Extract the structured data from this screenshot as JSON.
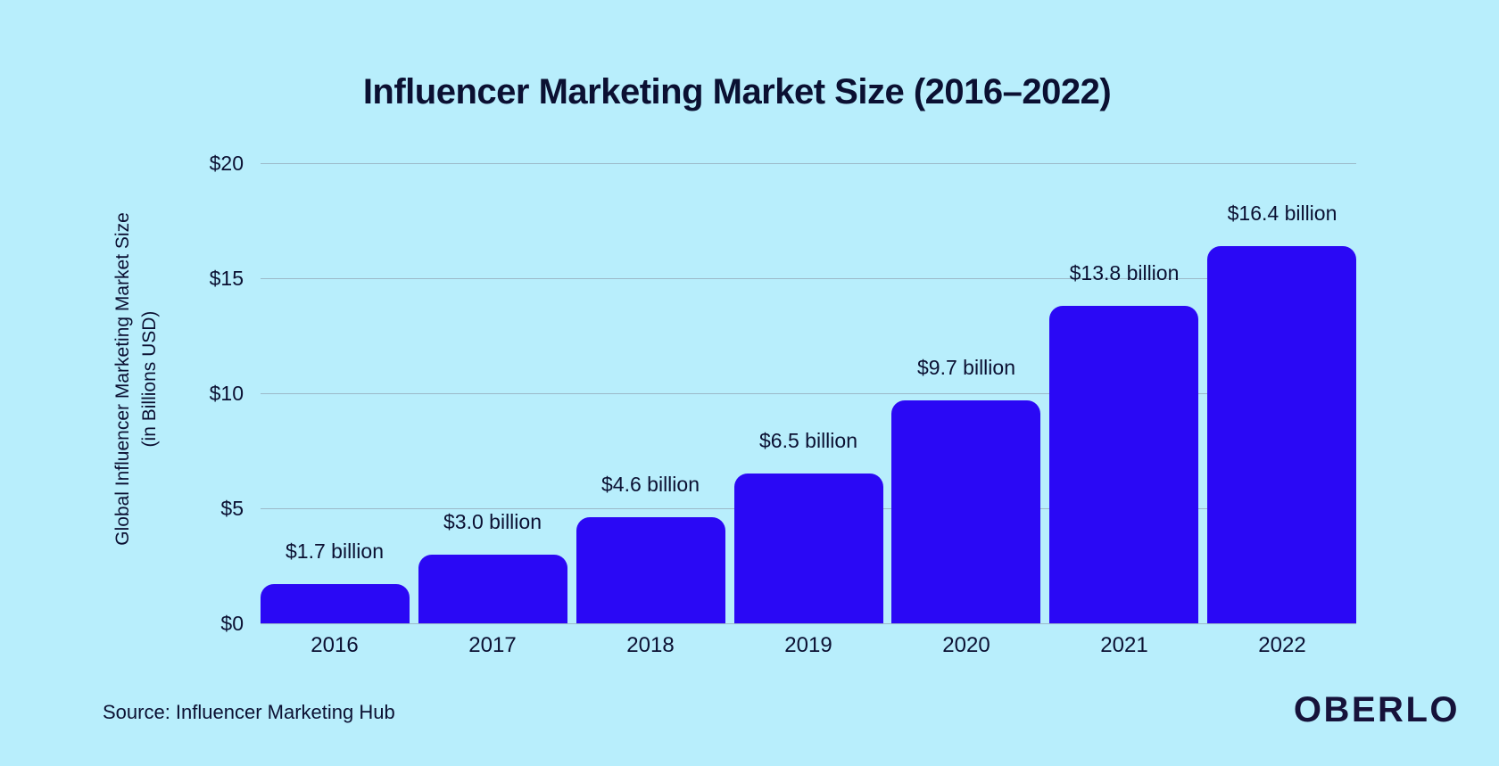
{
  "title": "Influencer Marketing Market Size (2016–2022)",
  "y_axis": {
    "label_line1": "Global Influencer Marketing Market Size",
    "label_line2": "(in Billions USD)"
  },
  "footer": {
    "source": "Source: Influencer Marketing Hub",
    "brand": "OBERLO"
  },
  "colors": {
    "background": "#B8EEFC",
    "bar": "#2A08F5",
    "title_text": "#0B1032",
    "text": "#141A3D",
    "gridline": "#9CB9C8",
    "logo": "#16123A"
  },
  "chart_data": {
    "type": "bar",
    "title": "Influencer Marketing Market Size (2016–2022)",
    "categories": [
      "2016",
      "2017",
      "2018",
      "2019",
      "2020",
      "2021",
      "2022"
    ],
    "values": [
      1.7,
      3.0,
      4.6,
      6.5,
      9.7,
      13.8,
      16.4
    ],
    "value_labels": [
      "$1.7 billion",
      "$3.0 billion",
      "$4.6 billion",
      "$6.5 billion",
      "$9.7 billion",
      "$13.8 billion",
      "$16.4 billion"
    ],
    "xlabel": "",
    "ylabel": "Global Influencer Marketing Market Size (in Billions USD)",
    "ylim": [
      0,
      20
    ],
    "yticks": [
      {
        "value": 20,
        "label": "$20"
      },
      {
        "value": 15,
        "label": "$15"
      },
      {
        "value": 10,
        "label": "$10"
      },
      {
        "value": 5,
        "label": "$5"
      },
      {
        "value": 0,
        "label": "$0"
      }
    ],
    "grid": true,
    "legend": false,
    "source": "Source: Influencer Marketing Hub"
  }
}
